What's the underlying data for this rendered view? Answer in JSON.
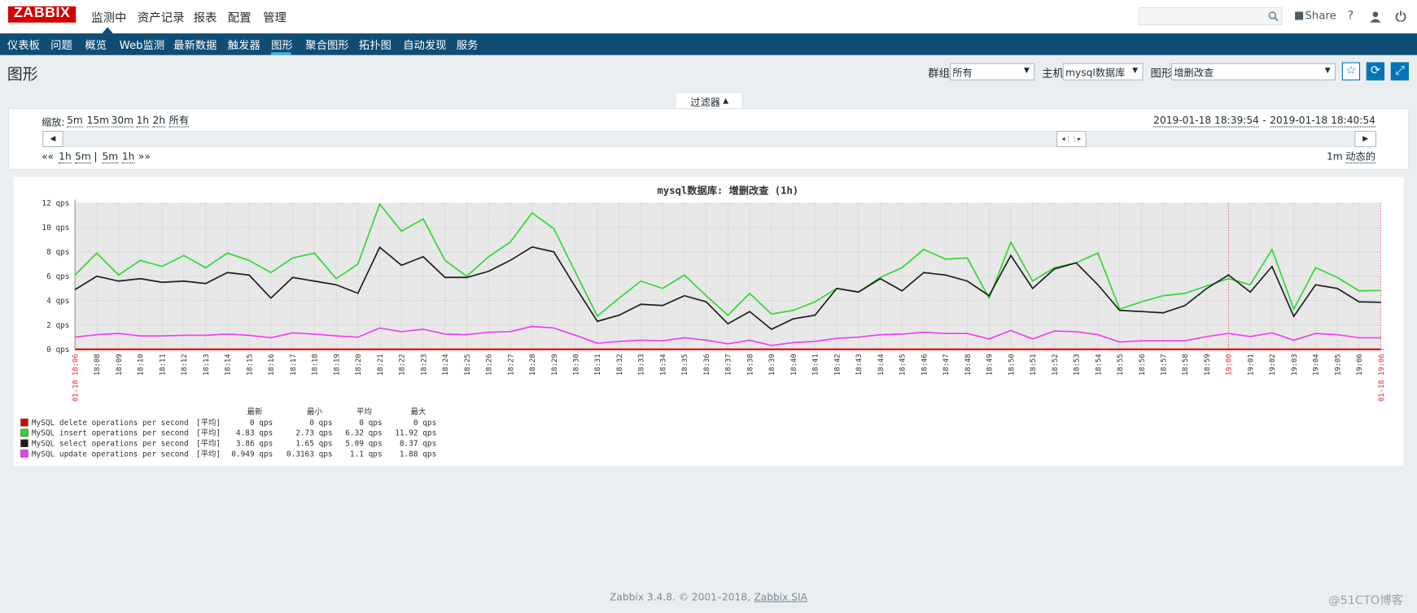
{
  "header": {
    "logo": "ZABBIX",
    "menu": [
      "监测中",
      "资产记录",
      "报表",
      "配置",
      "管理"
    ],
    "share": "Share",
    "help": "?"
  },
  "subnav": [
    "仪表板",
    "问题",
    "概览",
    "Web监测",
    "最新数据",
    "触发器",
    "图形",
    "聚合图形",
    "拓扑图",
    "自动发现",
    "服务"
  ],
  "page": {
    "title": "图形",
    "filters": [
      {
        "label": "群组",
        "value": "所有"
      },
      {
        "label": "主机",
        "value": "mysql数据库"
      },
      {
        "label": "图形",
        "value": "增删改查"
      }
    ]
  },
  "filter": {
    "tab": "过滤器",
    "zoom_label": "缩放:",
    "zoom": [
      "5m",
      "15m",
      "30m",
      "1h",
      "2h",
      "所有"
    ],
    "range_from": "2019-01-18 18:39:54",
    "range_sep": "-",
    "range_to": "2019-01-18 18:40:54",
    "back": "««",
    "back_steps": [
      "1h",
      "5m"
    ],
    "sep": "|",
    "fwd_steps": [
      "5m",
      "1h"
    ],
    "fwd": "»»",
    "period": "1m",
    "dynamic": "动态的"
  },
  "chart_data": {
    "type": "line",
    "title": "mysql数据库: 增删改查 (1h)",
    "categories": [
      "01-18 18:06",
      "18:08",
      "18:09",
      "18:10",
      "18:11",
      "18:12",
      "18:13",
      "18:14",
      "18:15",
      "18:16",
      "18:17",
      "18:18",
      "18:19",
      "18:20",
      "18:21",
      "18:22",
      "18:23",
      "18:24",
      "18:25",
      "18:26",
      "18:27",
      "18:28",
      "18:29",
      "18:30",
      "18:31",
      "18:32",
      "18:33",
      "18:34",
      "18:35",
      "18:36",
      "18:37",
      "18:38",
      "18:39",
      "18:40",
      "18:41",
      "18:42",
      "18:43",
      "18:44",
      "18:45",
      "18:46",
      "18:47",
      "18:48",
      "18:49",
      "18:50",
      "18:51",
      "18:52",
      "18:53",
      "18:54",
      "18:55",
      "18:56",
      "18:57",
      "18:58",
      "18:59",
      "19:00",
      "19:01",
      "19:02",
      "19:03",
      "19:04",
      "19:05",
      "19:06",
      "01-18 19:06"
    ],
    "highlighted_categories": [
      0,
      53,
      60
    ],
    "highlight_color": "#e8262b",
    "series": [
      {
        "name": "MySQL delete operations per second",
        "color": "#e00000",
        "values": [
          0,
          0,
          0,
          0,
          0,
          0,
          0,
          0,
          0,
          0,
          0,
          0,
          0,
          0,
          0,
          0,
          0,
          0,
          0,
          0,
          0,
          0,
          0,
          0,
          0,
          0,
          0,
          0,
          0,
          0,
          0,
          0,
          0,
          0,
          0,
          0,
          0,
          0,
          0,
          0,
          0,
          0,
          0,
          0,
          0,
          0,
          0,
          0,
          0,
          0,
          0,
          0,
          0,
          0,
          0,
          0,
          0,
          0,
          0,
          0,
          0
        ]
      },
      {
        "name": "MySQL insert operations per second",
        "color": "#2ed82e",
        "values": [
          6.1,
          7.9,
          6.1,
          7.3,
          6.8,
          7.7,
          6.7,
          7.9,
          7.3,
          6.3,
          7.5,
          7.9,
          5.8,
          7.0,
          11.92,
          9.7,
          10.7,
          7.3,
          6.0,
          7.6,
          8.8,
          11.2,
          9.9,
          6.3,
          2.73,
          4.2,
          5.6,
          5.0,
          6.1,
          4.4,
          2.8,
          4.6,
          2.9,
          3.2,
          3.9,
          5.0,
          4.7,
          5.9,
          6.7,
          8.2,
          7.4,
          7.5,
          4.2,
          8.8,
          5.6,
          6.7,
          7.1,
          7.9,
          3.3,
          3.9,
          4.4,
          4.6,
          5.2,
          5.8,
          5.3,
          8.2,
          3.3,
          6.7,
          5.9,
          4.8,
          4.83
        ]
      },
      {
        "name": "MySQL select operations per second",
        "color": "#1c1c1c",
        "values": [
          4.9,
          6.0,
          5.6,
          5.8,
          5.5,
          5.6,
          5.4,
          6.3,
          6.1,
          4.2,
          5.9,
          5.6,
          5.3,
          4.6,
          8.37,
          6.9,
          7.6,
          5.9,
          5.9,
          6.4,
          7.3,
          8.4,
          8.0,
          5.1,
          2.3,
          2.8,
          3.7,
          3.6,
          4.4,
          3.9,
          2.1,
          3.1,
          1.65,
          2.5,
          2.8,
          5.0,
          4.7,
          5.8,
          4.8,
          6.3,
          6.1,
          5.6,
          4.4,
          7.7,
          5.0,
          6.6,
          7.1,
          5.3,
          3.2,
          3.1,
          3.0,
          3.6,
          5.0,
          6.1,
          4.7,
          6.8,
          2.7,
          5.3,
          5.0,
          3.9,
          3.86
        ]
      },
      {
        "name": "MySQL update operations per second",
        "color": "#f03cf0",
        "values": [
          1.0,
          1.2,
          1.3,
          1.1,
          1.1,
          1.15,
          1.15,
          1.25,
          1.15,
          0.95,
          1.35,
          1.25,
          1.1,
          1.0,
          1.75,
          1.45,
          1.65,
          1.25,
          1.2,
          1.4,
          1.45,
          1.88,
          1.75,
          1.15,
          0.5,
          0.65,
          0.75,
          0.7,
          0.95,
          0.75,
          0.45,
          0.75,
          0.3163,
          0.55,
          0.65,
          0.9,
          1.0,
          1.2,
          1.25,
          1.4,
          1.3,
          1.3,
          0.85,
          1.55,
          0.85,
          1.5,
          1.45,
          1.2,
          0.6,
          0.7,
          0.7,
          0.7,
          1.05,
          1.3,
          1.05,
          1.35,
          0.75,
          1.3,
          1.2,
          0.95,
          0.949
        ]
      }
    ],
    "ylim": [
      0,
      12
    ],
    "yticks": [
      {
        "value": 0,
        "label": "0 qps"
      },
      {
        "value": 2,
        "label": "2 qps"
      },
      {
        "value": 4,
        "label": "4 qps"
      },
      {
        "value": 6,
        "label": "6 qps"
      },
      {
        "value": 8,
        "label": "8 qps"
      },
      {
        "value": 10,
        "label": "10 qps"
      },
      {
        "value": 12,
        "label": "12 qps"
      }
    ],
    "grid": true
  },
  "legend": {
    "headers": [
      "最新",
      "最小",
      "平均",
      "最大"
    ],
    "rows": [
      {
        "function": "[平均]",
        "cells": [
          "0 qps",
          "0 qps",
          "0 qps",
          "0 qps"
        ]
      },
      {
        "function": "[平均]",
        "cells": [
          "4.83 qps",
          "2.73 qps",
          "6.32 qps",
          "11.92 qps"
        ]
      },
      {
        "function": "[平均]",
        "cells": [
          "3.86 qps",
          "1.65 qps",
          "5.09 qps",
          "8.37 qps"
        ]
      },
      {
        "function": "[平均]",
        "cells": [
          "0.949 qps",
          "0.3163 qps",
          "1.1 qps",
          "1.88 qps"
        ]
      }
    ]
  },
  "footer": {
    "text": "Zabbix 3.4.8. © 2001–2018,",
    "link": "Zabbix SIA"
  },
  "watermark": "@51CTO博客"
}
